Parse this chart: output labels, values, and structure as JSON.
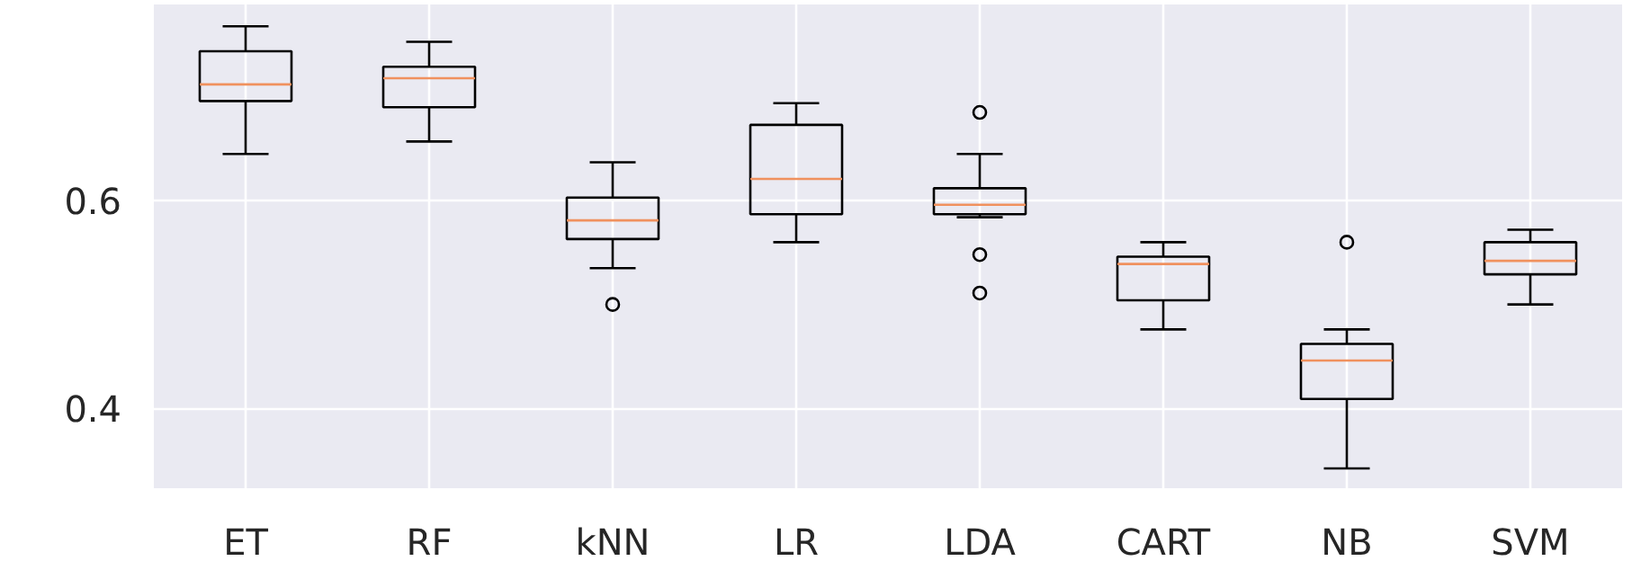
{
  "chart_data": {
    "type": "box",
    "categories": [
      "ET",
      "RF",
      "kNN",
      "LR",
      "LDA",
      "CART",
      "NB",
      "SVM"
    ],
    "boxes": [
      {
        "low": 0.645,
        "q1": 0.696,
        "median": 0.712,
        "q3": 0.744,
        "high": 0.768
      },
      {
        "low": 0.657,
        "q1": 0.69,
        "median": 0.718,
        "q3": 0.729,
        "high": 0.753
      },
      {
        "low": 0.535,
        "q1": 0.563,
        "median": 0.581,
        "q3": 0.603,
        "high": 0.637,
        "outliers": [
          0.5
        ]
      },
      {
        "low": 0.56,
        "q1": 0.587,
        "median": 0.621,
        "q3": 0.673,
        "high": 0.694
      },
      {
        "low": 0.584,
        "q1": 0.587,
        "median": 0.596,
        "q3": 0.612,
        "high": 0.645,
        "outliers": [
          0.685,
          0.548,
          0.511
        ]
      },
      {
        "low": 0.476,
        "q1": 0.504,
        "median": 0.539,
        "q3": 0.546,
        "high": 0.56
      },
      {
        "low": 0.342,
        "q1": 0.409,
        "median": 0.446,
        "q3": 0.462,
        "high": 0.476,
        "outliers": [
          0.56
        ]
      },
      {
        "low": 0.5,
        "q1": 0.529,
        "median": 0.542,
        "q3": 0.56,
        "high": 0.572
      }
    ],
    "ylim": [
      0.323,
      0.789
    ],
    "yticks": [
      0.4,
      0.6
    ],
    "grid": true
  }
}
